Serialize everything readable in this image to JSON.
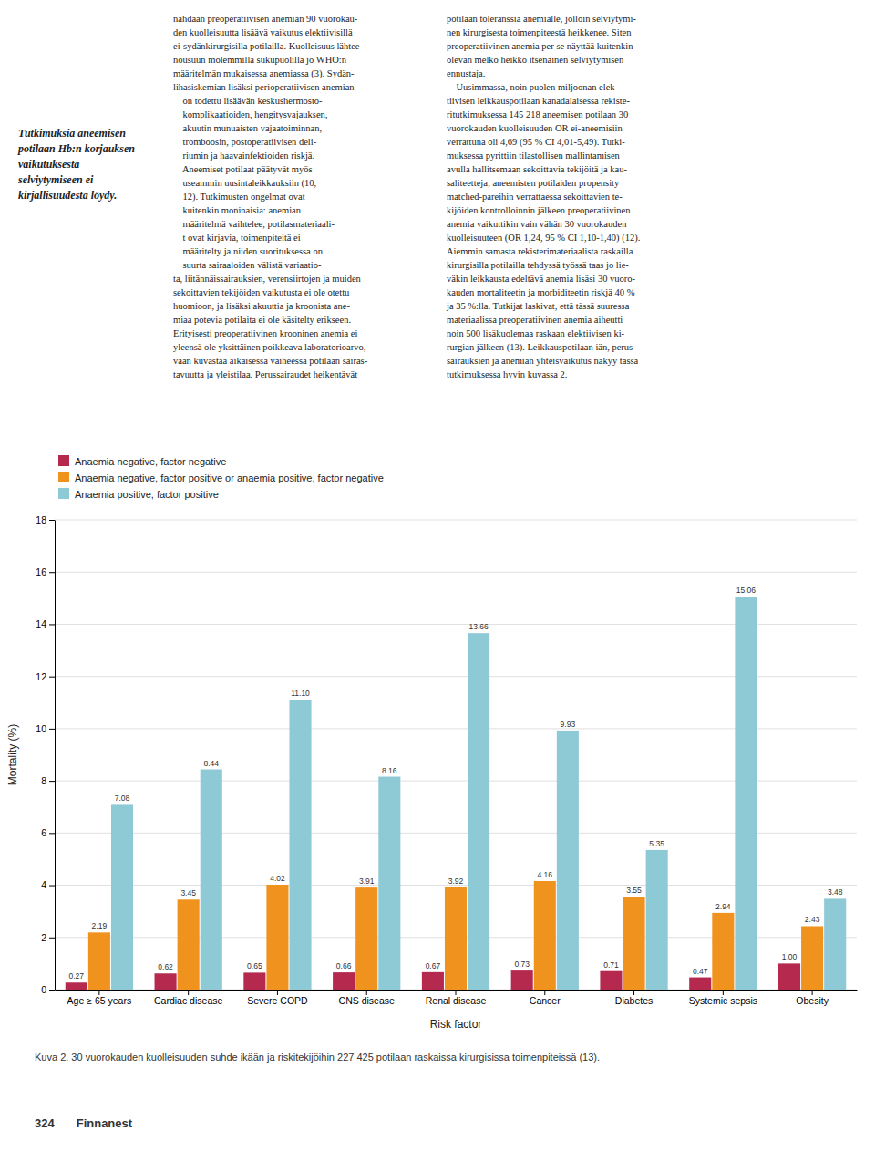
{
  "chart_data": {
    "type": "bar",
    "categories": [
      "Age ≥ 65 years",
      "Cardiac disease",
      "Severe COPD",
      "CNS disease",
      "Renal disease",
      "Cancer",
      "Diabetes",
      "Systemic sepsis",
      "Obesity"
    ],
    "series": [
      {
        "name": "Anaemia negative, factor negative",
        "color": "#b5294e",
        "values": [
          0.27,
          0.62,
          0.65,
          0.66,
          0.67,
          0.73,
          0.71,
          0.47,
          1.0
        ],
        "value_labels": [
          "0.27",
          "0.62",
          "0.65",
          "0.66",
          "0.67",
          "0.73",
          "0.71",
          "0.47",
          "1.00"
        ]
      },
      {
        "name": "Anaemia negative, factor positive or anaemia positive, factor negative",
        "color": "#f0921e",
        "values": [
          2.19,
          3.45,
          4.02,
          3.91,
          3.92,
          4.16,
          3.55,
          2.94,
          2.43
        ],
        "value_labels": [
          "2.19",
          "3.45",
          "4.02",
          "3.91",
          "3.92",
          "4.16",
          "3.55",
          "2.94",
          "2.43"
        ]
      },
      {
        "name": "Anaemia positive, factor positive",
        "color": "#8ec9d6",
        "values": [
          7.08,
          8.44,
          11.1,
          8.16,
          13.66,
          9.93,
          5.35,
          15.06,
          3.48
        ],
        "value_labels": [
          "7.08",
          "8.44",
          "11.10",
          "8.16",
          "13.66",
          "9.93",
          "5.35",
          "15.06",
          "3.48"
        ]
      }
    ],
    "ylabel": "Mortality (%)",
    "xlabel": "Risk factor",
    "ylim": [
      0,
      18
    ],
    "yticks": [
      0,
      2,
      4,
      6,
      8,
      10,
      12,
      14,
      16,
      18
    ],
    "grid": true,
    "legend": "top-left",
    "data_labels": true,
    "annotations": [
      "nähdään preoperatiivisen anemian 90 vuorokau-\nden kuolleisuutta lisäävä vaikutus elektiivisillä\nei-sydänkirurgisilla potilailla. Kuolleisuus lähtee\nnousuun molemmilla sukupuolilla jo WHO:n\nmääritelmän mukaisessa anemiassa (3). Sydän-\nlihasiskemian lisäksi perioperatiivisen anemian\n    on todettu lisäävän keskushermosto-\n    komplikaatioiden, hengitysvajauksen,\n    akuutin munuaisten vajaatoiminnan,\n    tromboosin, postoperatiivisen deli-\n    riumin ja haavainfektioiden riskjä.\n    Aneemiset potilaat päätyvät myös\n    useammin uusintaleikkauksiin (10,\n    12). Tutkimusten ongelmat ovat\n    kuitenkin moninaisia: anemian\n    määritelmä vaihtelee, potilasmateriaali-\n    t ovat kirjavia, toimenpiteitä ei\n    määritelty ja niiden suorituksessa on\n    suurta sairaaloiden välistä variaatio-\nta, liitännäissairauksien, verensiirtojen ja muiden\nsekoittavien tekijöiden vaikutusta ei ole otettu\nhuomioon, ja lisäksi akuuttia ja kroonista ane-\nmiaa potevia potilaita ei ole käsitelty erikseen.\nErityisesti preoperatiivinen krooninen anemia ei\nyleensä ole yksittäinen poikkeava laboratorioarvo,\nvaan kuvastaa aikaisessa vaiheessa potilaan sairas-\ntavuutta ja yleistilaa. Perussairaudet heikentävät",
      "potilaan toleranssia anemialle, jolloin selviytymi-\nnen kirurgisesta toimenpiteestä heikkenee. Siten\npreoperatiivinen anemia per se näyttää kuitenkin\nolevan melko heikko itsenäinen selviytymisen\nennustaja.\n    Uusimmassa, noin puolen miljoonan elek-\ntiivisen leikkauspotilaan kanadalaisessa rekiste-\nritutkimuksessa 145 218 aneemisen potilaan 30\nvuorokauden kuolleisuuden OR ei-aneemisiin\nverrattuna oli 4,69 (95 % CI 4,01-5,49). Tutki-\nmuksessa pyrittiin tilastollisen mallintamisen\navulla hallitsemaan sekoittavia tekijöitä ja kau-\nsaliteetteja; aneemisten potilaiden propensity\nmatched-pareihin verrattaessa sekoittavien te-\nkijöiden kontrolloinnin jälkeen preoperatiivinen\nanemia vaikuttikin vain vähän 30 vuorokauden\nkuolleisuuteen (OR 1,24, 95 % CI 1,10-1,40) (12).\nAiemmin samasta rekisterimateriaalista raskailla\nkirurgisilla potilailla tehdyssä työssä taas jo lie-\nväkin leikkausta edeltävä anemia lisäsi 30 vuoro-\nkauden mortaliteetin ja morbiditeetin riskjä 40 %\nja 35 %:lla. Tutkijat laskivat, että tässä suuressa\nmateriaalissa preoperatiivinen anemia aiheutti\nnoin 500 lisäkuolemaa raskaan elektiivisen ki-\nrurgian jälkeen (13). Leikkauspotilaan iän, perus-\nsairauksien ja anemian yhteisvaikutus näkyy tässä\ntutkimuksessa hyvin kuvassa 2.",
      "Tutkimuksia aneemisen\npotilaan Hb:n korjauksen\nvaikutuksesta\nselviytymiseen ei\nkirjallisuudesta löydy.",
      "Kuva 2. 30 vuorokauden kuolleisuuden suhde ikään ja riskitekijöihin 227 425 potilaan raskaissa kirurgisissa toimenpiteissä (13).",
      "324",
      "Finnanest"
    ]
  }
}
